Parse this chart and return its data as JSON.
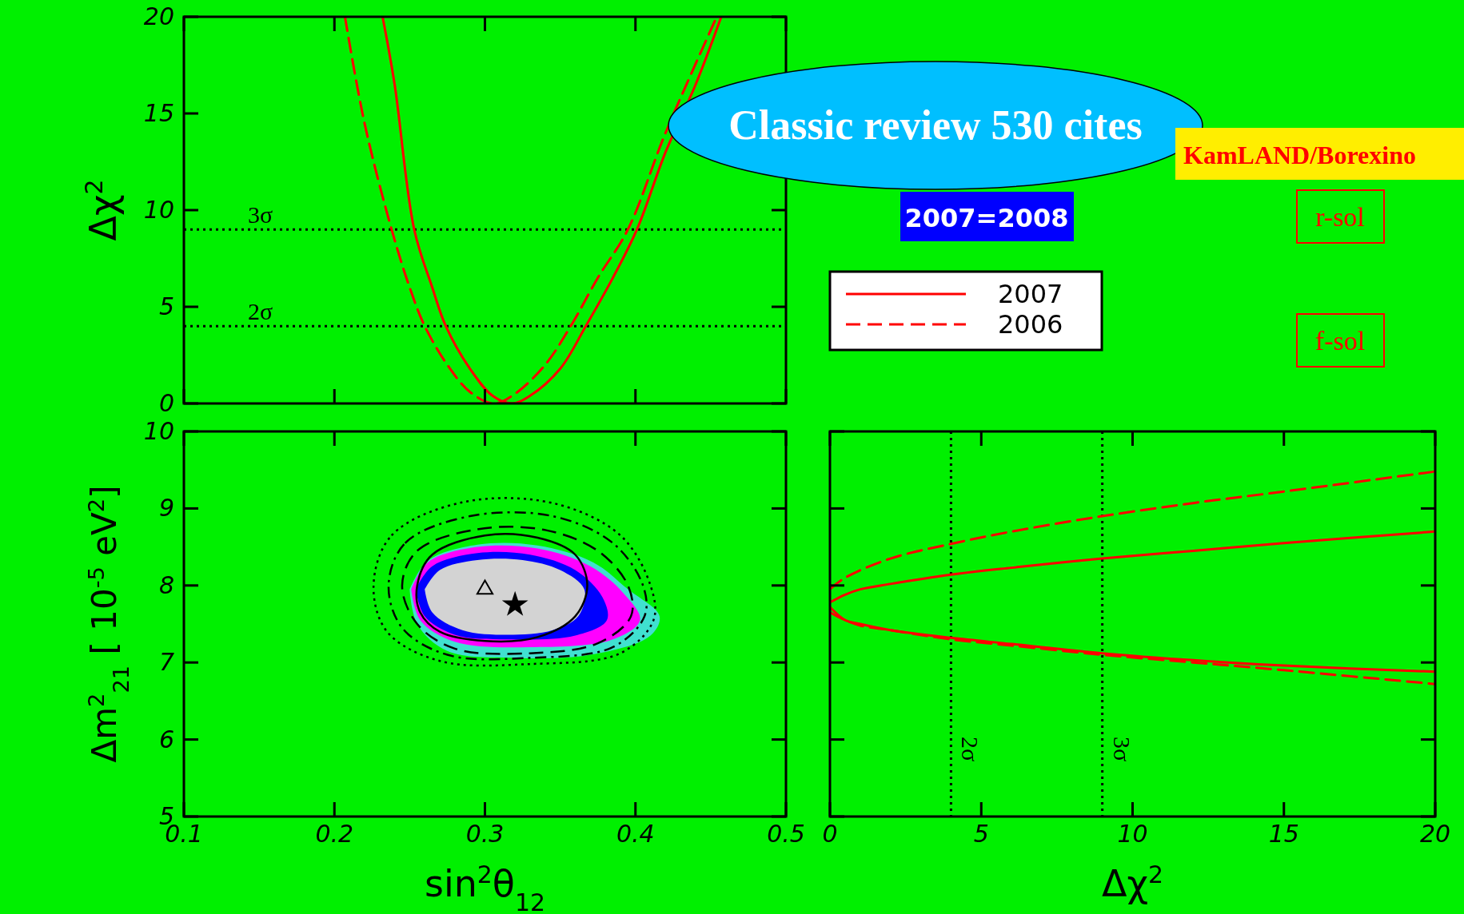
{
  "chart_data": [
    {
      "type": "line",
      "ylabel": "Δχ$^{2}$",
      "xlim": [
        0.1,
        0.5
      ],
      "ylim": [
        0,
        20
      ],
      "xticks": [
        0.1,
        0.2,
        0.3,
        0.4,
        0.5
      ],
      "yticks": [
        0,
        5,
        10,
        15,
        20
      ],
      "tick_labels": "y",
      "legend": "right",
      "series": [
        {
          "name": "2007",
          "color": "#ff0000",
          "line_style": "solid",
          "x": [
            0.232,
            0.24,
            0.253,
            0.265,
            0.274,
            0.29,
            0.305,
            0.318,
            0.33,
            0.35,
            0.367,
            0.385,
            0.401,
            0.42,
            0.44,
            0.457
          ],
          "values": [
            20,
            16.5,
            9,
            6,
            4,
            1.8,
            0.4,
            0,
            0.4,
            1.8,
            4,
            6.5,
            9,
            13,
            16.5,
            20
          ]
        },
        {
          "name": "2006",
          "color": "#ff0000",
          "line_style": "dashed",
          "x": [
            0.207,
            0.22,
            0.238,
            0.25,
            0.26,
            0.275,
            0.29,
            0.306,
            0.32,
            0.34,
            0.357,
            0.375,
            0.395,
            0.42,
            0.454
          ],
          "values": [
            20,
            14.5,
            9,
            6,
            4,
            2,
            0.6,
            0,
            0.5,
            2,
            4,
            6.5,
            9,
            14,
            20
          ]
        }
      ],
      "ref_lines": [
        {
          "axis": "y",
          "value": 9,
          "label": "3σ",
          "line_style": "dotted",
          "color": "#000000"
        },
        {
          "axis": "y",
          "value": 4,
          "label": "2σ",
          "line_style": "dotted",
          "color": "#000000"
        }
      ]
    },
    {
      "type": "line",
      "xlabel": "sin$^{2}$θ$_{12}$",
      "ylabel": "Δm$^{2}$$_{21}$ [ 10$^{-5}$ eV$^{2}$]",
      "xlim": [
        0.1,
        0.5
      ],
      "ylim": [
        5,
        10
      ],
      "xticks": [
        0.1,
        0.2,
        0.3,
        0.4,
        0.5
      ],
      "yticks": [
        5,
        6,
        7,
        8,
        9,
        10
      ],
      "series": [
        {
          "type": "area",
          "color": "#40e0d0",
          "x": [
            0.25,
            0.262,
            0.295,
            0.335,
            0.372,
            0.395,
            0.416,
            0.41,
            0.37,
            0.32,
            0.275,
            0.255,
            0.25
          ],
          "values": [
            7.95,
            8.32,
            8.53,
            8.52,
            8.3,
            7.95,
            7.6,
            7.35,
            7.1,
            7.06,
            7.15,
            7.5,
            7.95
          ]
        },
        {
          "type": "area",
          "color": "#ff00ff",
          "x": [
            0.251,
            0.262,
            0.295,
            0.335,
            0.37,
            0.392,
            0.403,
            0.385,
            0.33,
            0.28,
            0.257,
            0.251
          ],
          "values": [
            7.95,
            8.3,
            8.5,
            8.48,
            8.25,
            7.9,
            7.55,
            7.3,
            7.2,
            7.27,
            7.55,
            7.95
          ]
        },
        {
          "type": "area",
          "color": "#0000ff",
          "x": [
            0.254,
            0.265,
            0.295,
            0.33,
            0.36,
            0.378,
            0.381,
            0.36,
            0.315,
            0.28,
            0.26,
            0.254
          ],
          "values": [
            7.95,
            8.25,
            8.42,
            8.4,
            8.2,
            7.85,
            7.55,
            7.35,
            7.3,
            7.36,
            7.6,
            7.95
          ]
        },
        {
          "type": "area",
          "color": "#d3d3d3",
          "x": [
            0.26,
            0.27,
            0.295,
            0.325,
            0.35,
            0.366,
            0.362,
            0.345,
            0.315,
            0.285,
            0.265,
            0.26
          ],
          "values": [
            7.95,
            8.2,
            8.33,
            8.33,
            8.2,
            7.95,
            7.6,
            7.42,
            7.36,
            7.42,
            7.65,
            7.95
          ]
        },
        {
          "type": "scatter",
          "color": "#000000",
          "marker": "star",
          "x": [
            0.32
          ],
          "values": [
            7.75
          ]
        },
        {
          "type": "scatter",
          "color": "#000000",
          "marker": "triangle",
          "x": [
            0.3
          ],
          "values": [
            7.95
          ]
        }
      ]
    },
    {
      "type": "line",
      "xlabel": "Δχ$^{2}$",
      "xlim": [
        0,
        20
      ],
      "ylim": [
        5,
        10
      ],
      "xticks": [
        0,
        5,
        10,
        15,
        20
      ],
      "yticks": [
        5,
        6,
        7,
        8,
        9,
        10
      ],
      "tick_labels": "x",
      "series": [
        {
          "color": "#ff0000",
          "line_style": "solid",
          "x": [
            0,
            0.5,
            1,
            2,
            4,
            6,
            9,
            12,
            15,
            20
          ],
          "values": [
            7.78,
            7.88,
            7.95,
            8.02,
            8.14,
            8.23,
            8.35,
            8.45,
            8.55,
            8.7
          ]
        },
        {
          "color": "#ff0000",
          "line_style": "solid",
          "x": [
            0,
            0.5,
            1,
            2,
            4,
            6,
            9,
            12,
            15,
            20
          ],
          "values": [
            7.72,
            7.55,
            7.5,
            7.42,
            7.32,
            7.24,
            7.12,
            7.03,
            6.96,
            6.88
          ]
        },
        {
          "color": "#ff0000",
          "line_style": "dashed",
          "x": [
            0,
            0.5,
            2,
            4,
            6,
            9,
            12,
            15,
            20
          ],
          "values": [
            7.95,
            8.1,
            8.35,
            8.54,
            8.7,
            8.9,
            9.07,
            9.22,
            9.48
          ]
        },
        {
          "color": "#ff0000",
          "line_style": "dashed",
          "x": [
            0,
            0.5,
            1,
            2,
            4,
            6,
            9,
            12,
            15,
            20
          ],
          "values": [
            7.65,
            7.55,
            7.48,
            7.42,
            7.3,
            7.22,
            7.1,
            7.0,
            6.9,
            6.72
          ]
        }
      ],
      "ref_lines": [
        {
          "axis": "x",
          "value": 4,
          "label": "2σ",
          "line_style": "dotted",
          "color": "#000000"
        },
        {
          "axis": "x",
          "value": 9,
          "label": "3σ",
          "line_style": "dotted",
          "color": "#000000"
        }
      ]
    },
    {
      "type": "other",
      "annotations": [
        "Classic review 530 cites",
        "KamLAND/Borexino",
        "2007=2008",
        "r-sol",
        "f-sol"
      ]
    }
  ]
}
